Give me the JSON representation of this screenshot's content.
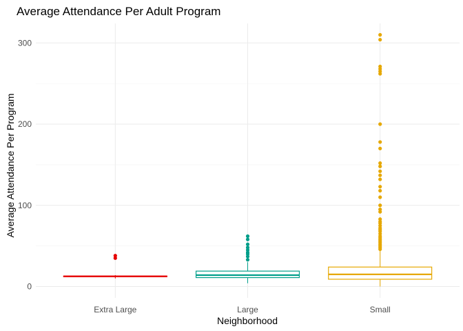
{
  "chart_data": {
    "type": "box",
    "title": "Average Attendance Per Adult Program",
    "xlabel": "Neighborhood",
    "ylabel": "Average Attendance Per Program",
    "categories": [
      "Extra Large",
      "Large",
      "Small"
    ],
    "ylim": [
      -14,
      324
    ],
    "yticks": [
      0,
      100,
      200,
      300
    ],
    "grid": true,
    "legend": "none",
    "boxes": [
      {
        "category": "Extra Large",
        "color": "#E60000",
        "min": 10,
        "q1": 12,
        "median": 12.5,
        "q3": 13,
        "max": 14,
        "outliers": [
          35,
          38
        ]
      },
      {
        "category": "Large",
        "color": "#009E8A",
        "min": 4,
        "q1": 11,
        "median": 14,
        "q3": 19,
        "max": 30,
        "outliers": [
          33,
          37,
          40,
          42,
          45,
          48,
          52,
          58,
          62
        ]
      },
      {
        "category": "Small",
        "color": "#E6A800",
        "min": 0,
        "q1": 9,
        "median": 15,
        "q3": 24,
        "max": 45,
        "outliers": [
          46,
          48,
          50,
          52,
          54,
          56,
          58,
          60,
          62,
          65,
          68,
          70,
          72,
          75,
          78,
          80,
          83,
          92,
          95,
          100,
          110,
          118,
          123,
          132,
          137,
          142,
          148,
          152,
          170,
          178,
          200,
          262,
          265,
          268,
          271,
          304,
          310
        ]
      }
    ]
  }
}
